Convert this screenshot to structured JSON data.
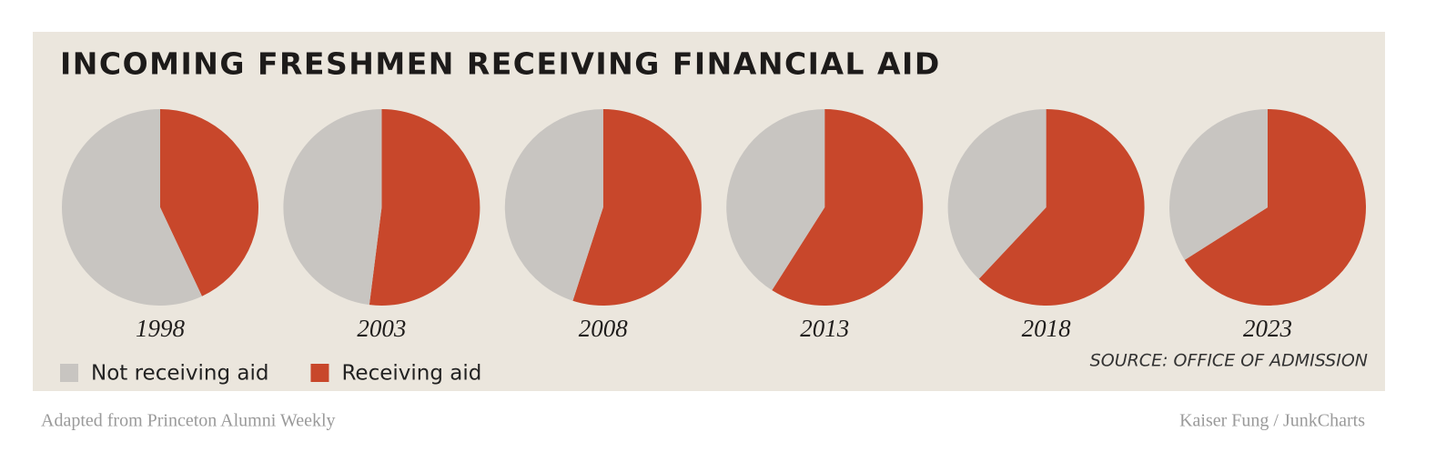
{
  "chart_data": {
    "type": "pie",
    "title": "INCOMING FRESHMEN RECEIVING FINANCIAL AID",
    "categories": [
      "1998",
      "2003",
      "2008",
      "2013",
      "2018",
      "2023"
    ],
    "series": [
      {
        "name": "Not receiving aid",
        "color": "#c8c5c1",
        "values": [
          57,
          48,
          45,
          41,
          38,
          34
        ]
      },
      {
        "name": "Receiving aid",
        "color": "#c8472b",
        "values": [
          43,
          52,
          55,
          59,
          62,
          66
        ]
      }
    ],
    "source": "SOURCE: OFFICE OF ADMISSION",
    "note": "Adapted from Princeton Alumni Weekly",
    "credit": "Kaiser Fung / JunkCharts"
  }
}
